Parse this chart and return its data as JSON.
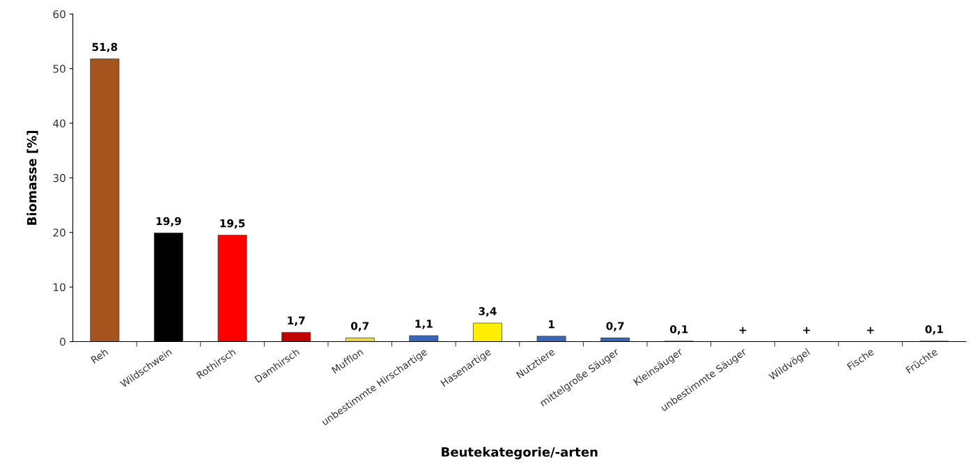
{
  "chart_data": {
    "type": "bar",
    "xlabel": "Beutekategorie/-arten",
    "ylabel": "Biomasse [%]",
    "categories": [
      "Reh",
      "Wildschwein",
      "Rothirsch",
      "Damhirsch",
      "Mufflon",
      "unbestimmte Hirschartige",
      "Hasenartige",
      "Nutztiere",
      "mittelgroße Säuger",
      "Kleinsäuger",
      "unbestimmte Säuger",
      "Wildvögel",
      "Fische",
      "Früchte"
    ],
    "values": [
      51.8,
      19.9,
      19.5,
      1.7,
      0.7,
      1.1,
      3.4,
      1,
      0.7,
      0.1,
      null,
      null,
      null,
      0.1
    ],
    "value_labels": [
      "51,8",
      "19,9",
      "19,5",
      "1,7",
      "0,7",
      "1,1",
      "3,4",
      "1",
      "0,7",
      "0,1",
      "+",
      "+",
      "+",
      "0,1"
    ],
    "colors": [
      "#a4541c",
      "#000000",
      "#ff0000",
      "#c00000",
      "#e6d64c",
      "#3a66b8",
      "#ffee00",
      "#3a66b8",
      "#3a66b8",
      "#808080",
      "#808080",
      "#808080",
      "#808080",
      "#808080"
    ],
    "ylim": [
      0,
      60
    ],
    "yticks": [
      0,
      10,
      20,
      30,
      40,
      50,
      60
    ],
    "grid": false,
    "legend": false
  }
}
